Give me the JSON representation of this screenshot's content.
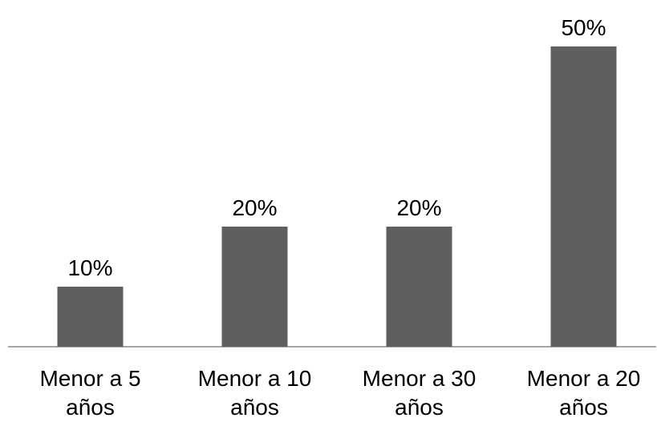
{
  "chart_data": {
    "type": "bar",
    "categories": [
      [
        "Menor a 5",
        "años"
      ],
      [
        "Menor a 10",
        "años"
      ],
      [
        "Menor a 30",
        "años"
      ],
      [
        "Menor a 20",
        "años"
      ]
    ],
    "values": [
      10,
      20,
      20,
      50
    ],
    "data_labels": [
      "10%",
      "20%",
      "20%",
      "50%"
    ],
    "value_unit": "%",
    "ylim": [
      0,
      50
    ],
    "grid": false,
    "legend": "none",
    "bar_color": "#5f5f5f",
    "axis_color": "#a6a6a6"
  }
}
